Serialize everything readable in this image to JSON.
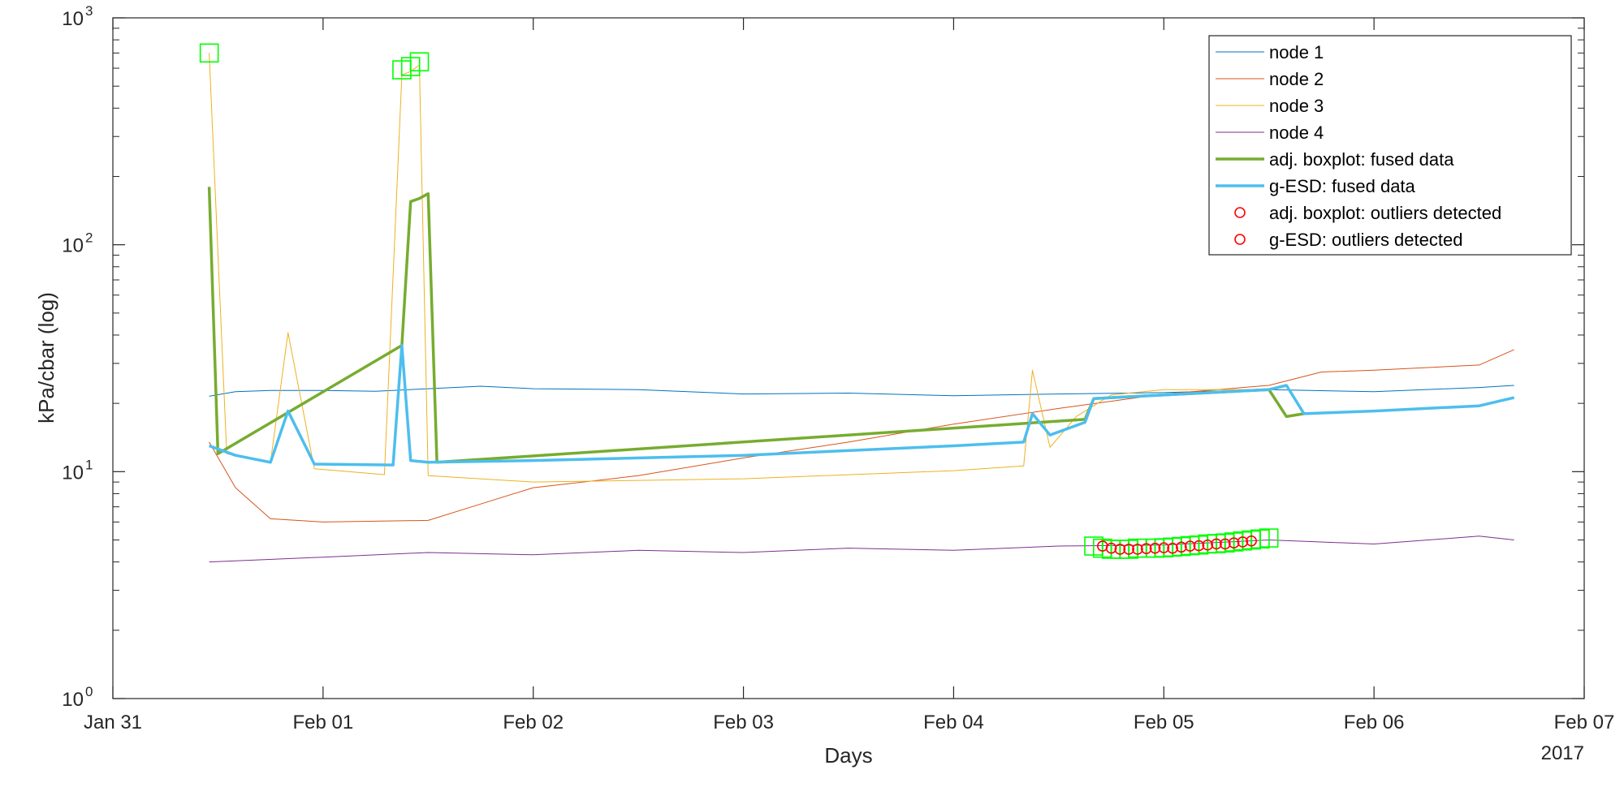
{
  "chart_data": {
    "type": "line",
    "xlabel": "Days",
    "ylabel": "kPa/cbar (log)",
    "x_year_label": "2017",
    "y_scale": "log",
    "ylim": [
      1,
      1000
    ],
    "xlim": [
      "2017-01-31 00:00",
      "2017-02-07 00:00"
    ],
    "grid": false,
    "legend_position": "top-right",
    "x_ticks": [
      {
        "value": "2017-01-31",
        "label": "Jan 31"
      },
      {
        "value": "2017-02-01",
        "label": "Feb 01"
      },
      {
        "value": "2017-02-02",
        "label": "Feb 02"
      },
      {
        "value": "2017-02-03",
        "label": "Feb 03"
      },
      {
        "value": "2017-02-04",
        "label": "Feb 04"
      },
      {
        "value": "2017-02-05",
        "label": "Feb 05"
      },
      {
        "value": "2017-02-06",
        "label": "Feb 06"
      },
      {
        "value": "2017-02-07",
        "label": "Feb 07"
      }
    ],
    "y_ticks": [
      {
        "value": 1,
        "base": "10",
        "exp": "0"
      },
      {
        "value": 10,
        "base": "10",
        "exp": "1"
      },
      {
        "value": 100,
        "base": "10",
        "exp": "2"
      },
      {
        "value": 1000,
        "base": "10",
        "exp": "3"
      }
    ],
    "series": [
      {
        "name": "node 1",
        "color": "#0072BD",
        "kind": "line",
        "width": 1,
        "points": [
          [
            "2017-01-31 11:00",
            21.5
          ],
          [
            "2017-01-31 14:00",
            22.5
          ],
          [
            "2017-01-31 18:00",
            22.8
          ],
          [
            "2017-02-01 00:00",
            22.8
          ],
          [
            "2017-02-01 06:00",
            22.6
          ],
          [
            "2017-02-01 12:00",
            23.2
          ],
          [
            "2017-02-01 18:00",
            23.8
          ],
          [
            "2017-02-02 00:00",
            23.2
          ],
          [
            "2017-02-02 12:00",
            23.0
          ],
          [
            "2017-02-03 00:00",
            22.0
          ],
          [
            "2017-02-03 12:00",
            22.2
          ],
          [
            "2017-02-04 00:00",
            21.6
          ],
          [
            "2017-02-04 12:00",
            22.0
          ],
          [
            "2017-02-05 00:00",
            22.3
          ],
          [
            "2017-02-05 12:00",
            23.0
          ],
          [
            "2017-02-06 00:00",
            22.5
          ],
          [
            "2017-02-06 12:00",
            23.5
          ],
          [
            "2017-02-06 16:00",
            24.0
          ]
        ]
      },
      {
        "name": "node 2",
        "color": "#D95319",
        "kind": "line",
        "width": 1,
        "points": [
          [
            "2017-01-31 11:00",
            13.5
          ],
          [
            "2017-01-31 14:00",
            8.5
          ],
          [
            "2017-01-31 18:00",
            6.2
          ],
          [
            "2017-02-01 00:00",
            6.0
          ],
          [
            "2017-02-01 12:00",
            6.1
          ],
          [
            "2017-02-01 18:00",
            7.2
          ],
          [
            "2017-02-02 00:00",
            8.5
          ],
          [
            "2017-02-02 12:00",
            9.6
          ],
          [
            "2017-02-03 00:00",
            11.5
          ],
          [
            "2017-02-03 12:00",
            13.5
          ],
          [
            "2017-02-04 00:00",
            16.2
          ],
          [
            "2017-02-04 12:00",
            19.0
          ],
          [
            "2017-02-05 00:00",
            22.0
          ],
          [
            "2017-02-05 12:00",
            24.0
          ],
          [
            "2017-02-05 18:00",
            27.5
          ],
          [
            "2017-02-06 00:00",
            28.0
          ],
          [
            "2017-02-06 12:00",
            29.5
          ],
          [
            "2017-02-06 16:00",
            34.5
          ]
        ]
      },
      {
        "name": "node 3",
        "color": "#EDB120",
        "kind": "line",
        "width": 1,
        "points": [
          [
            "2017-01-31 11:00",
            700
          ],
          [
            "2017-01-31 13:00",
            12.0
          ],
          [
            "2017-01-31 18:00",
            11.0
          ],
          [
            "2017-01-31 20:00",
            41.0
          ],
          [
            "2017-01-31 23:00",
            10.3
          ],
          [
            "2017-02-01 07:00",
            9.7
          ],
          [
            "2017-02-01 09:00",
            560
          ],
          [
            "2017-02-01 10:00",
            580
          ],
          [
            "2017-02-01 11:00",
            620
          ],
          [
            "2017-02-01 12:00",
            9.6
          ],
          [
            "2017-02-02 00:00",
            9.0
          ],
          [
            "2017-02-03 00:00",
            9.3
          ],
          [
            "2017-02-04 00:00",
            10.1
          ],
          [
            "2017-02-04 08:00",
            10.6
          ],
          [
            "2017-02-04 09:00",
            28.0
          ],
          [
            "2017-02-04 11:00",
            12.8
          ],
          [
            "2017-02-04 14:00",
            17.5
          ],
          [
            "2017-02-04 18:00",
            21.8
          ],
          [
            "2017-02-05 00:00",
            23.0
          ],
          [
            "2017-02-05 12:00",
            23.0
          ]
        ]
      },
      {
        "name": "node 4",
        "color": "#7E2F8E",
        "kind": "line",
        "width": 1,
        "points": [
          [
            "2017-01-31 11:00",
            4.0
          ],
          [
            "2017-02-01 00:00",
            4.2
          ],
          [
            "2017-02-01 12:00",
            4.4
          ],
          [
            "2017-02-02 00:00",
            4.3
          ],
          [
            "2017-02-02 12:00",
            4.5
          ],
          [
            "2017-02-03 00:00",
            4.4
          ],
          [
            "2017-02-03 12:00",
            4.6
          ],
          [
            "2017-02-04 00:00",
            4.5
          ],
          [
            "2017-02-04 12:00",
            4.7
          ],
          [
            "2017-02-05 00:00",
            4.75
          ],
          [
            "2017-02-05 12:00",
            5.0
          ],
          [
            "2017-02-06 00:00",
            4.8
          ],
          [
            "2017-02-06 12:00",
            5.2
          ],
          [
            "2017-02-06 16:00",
            5.0
          ]
        ]
      },
      {
        "name": "adj. boxplot: fused data",
        "color": "#77AC30",
        "kind": "line",
        "width": 3.5,
        "points": [
          [
            "2017-01-31 11:00",
            180
          ],
          [
            "2017-01-31 12:00",
            12.0
          ],
          [
            "2017-02-01 09:00",
            36.0
          ],
          [
            "2017-02-01 10:00",
            155
          ],
          [
            "2017-02-01 11:00",
            160
          ],
          [
            "2017-02-01 12:00",
            168
          ],
          [
            "2017-02-01 13:00",
            11.0
          ],
          [
            "2017-02-04 15:00",
            17.0
          ],
          [
            "2017-02-04 16:00",
            21.0
          ],
          [
            "2017-02-05 12:00",
            23.0
          ],
          [
            "2017-02-05 14:00",
            17.5
          ],
          [
            "2017-02-05 16:00",
            18.0
          ]
        ]
      },
      {
        "name": "g-ESD: fused data",
        "color": "#4DBEEE",
        "kind": "line",
        "width": 3.5,
        "points": [
          [
            "2017-01-31 11:00",
            13.0
          ],
          [
            "2017-01-31 14:00",
            11.8
          ],
          [
            "2017-01-31 18:00",
            11.0
          ],
          [
            "2017-01-31 20:00",
            18.5
          ],
          [
            "2017-01-31 23:00",
            10.8
          ],
          [
            "2017-02-01 08:00",
            10.7
          ],
          [
            "2017-02-01 09:00",
            36.0
          ],
          [
            "2017-02-01 10:00",
            11.2
          ],
          [
            "2017-02-01 12:00",
            11.0
          ],
          [
            "2017-02-02 00:00",
            11.2
          ],
          [
            "2017-02-03 00:00",
            11.8
          ],
          [
            "2017-02-04 00:00",
            13.0
          ],
          [
            "2017-02-04 08:00",
            13.5
          ],
          [
            "2017-02-04 09:00",
            18.0
          ],
          [
            "2017-02-04 11:00",
            14.5
          ],
          [
            "2017-02-04 15:00",
            16.5
          ],
          [
            "2017-02-04 16:00",
            21.0
          ],
          [
            "2017-02-05 12:00",
            23.0
          ],
          [
            "2017-02-05 14:00",
            24.0
          ],
          [
            "2017-02-05 16:00",
            18.0
          ],
          [
            "2017-02-06 00:00",
            18.5
          ],
          [
            "2017-02-06 12:00",
            19.5
          ],
          [
            "2017-02-06 16:00",
            21.2
          ]
        ]
      },
      {
        "name": "adj. boxplot: outliers detected",
        "color": "#FF0000",
        "kind": "marker-circle",
        "points": [
          [
            "2017-02-04 17:00",
            4.7
          ],
          [
            "2017-02-04 19:00",
            4.55
          ],
          [
            "2017-02-04 21:00",
            4.55
          ],
          [
            "2017-02-04 23:00",
            4.6
          ],
          [
            "2017-02-05 01:00",
            4.6
          ],
          [
            "2017-02-05 03:00",
            4.7
          ],
          [
            "2017-02-05 05:00",
            4.75
          ],
          [
            "2017-02-05 07:00",
            4.8
          ],
          [
            "2017-02-05 09:00",
            4.9
          ]
        ]
      },
      {
        "name": "g-ESD: outliers detected",
        "color": "#FF0000",
        "kind": "marker-circle",
        "points": [
          [
            "2017-02-04 18:00",
            4.6
          ],
          [
            "2017-02-04 20:00",
            4.55
          ],
          [
            "2017-02-04 22:00",
            4.58
          ],
          [
            "2017-02-05 00:00",
            4.62
          ],
          [
            "2017-02-05 02:00",
            4.65
          ],
          [
            "2017-02-05 04:00",
            4.72
          ],
          [
            "2017-02-05 06:00",
            4.8
          ],
          [
            "2017-02-05 08:00",
            4.85
          ],
          [
            "2017-02-05 10:00",
            4.95
          ]
        ]
      },
      {
        "name": "",
        "color": "#00FF00",
        "kind": "marker-square",
        "in_legend": false,
        "points": [
          [
            "2017-01-31 11:00",
            700
          ],
          [
            "2017-02-01 09:00",
            590
          ],
          [
            "2017-02-01 10:00",
            610
          ],
          [
            "2017-02-01 11:00",
            640
          ],
          [
            "2017-02-04 16:00",
            4.7
          ],
          [
            "2017-02-04 17:00",
            4.6
          ],
          [
            "2017-02-04 18:00",
            4.55
          ],
          [
            "2017-02-04 19:00",
            4.55
          ],
          [
            "2017-02-04 20:00",
            4.55
          ],
          [
            "2017-02-04 21:00",
            4.6
          ],
          [
            "2017-02-04 22:00",
            4.6
          ],
          [
            "2017-02-04 23:00",
            4.6
          ],
          [
            "2017-02-05 00:00",
            4.62
          ],
          [
            "2017-02-05 01:00",
            4.65
          ],
          [
            "2017-02-05 02:00",
            4.68
          ],
          [
            "2017-02-05 03:00",
            4.72
          ],
          [
            "2017-02-05 04:00",
            4.75
          ],
          [
            "2017-02-05 05:00",
            4.8
          ],
          [
            "2017-02-05 06:00",
            4.82
          ],
          [
            "2017-02-05 07:00",
            4.85
          ],
          [
            "2017-02-05 08:00",
            4.9
          ],
          [
            "2017-02-05 09:00",
            4.95
          ],
          [
            "2017-02-05 10:00",
            5.0
          ],
          [
            "2017-02-05 11:00",
            5.05
          ],
          [
            "2017-02-05 12:00",
            5.1
          ]
        ]
      }
    ]
  }
}
